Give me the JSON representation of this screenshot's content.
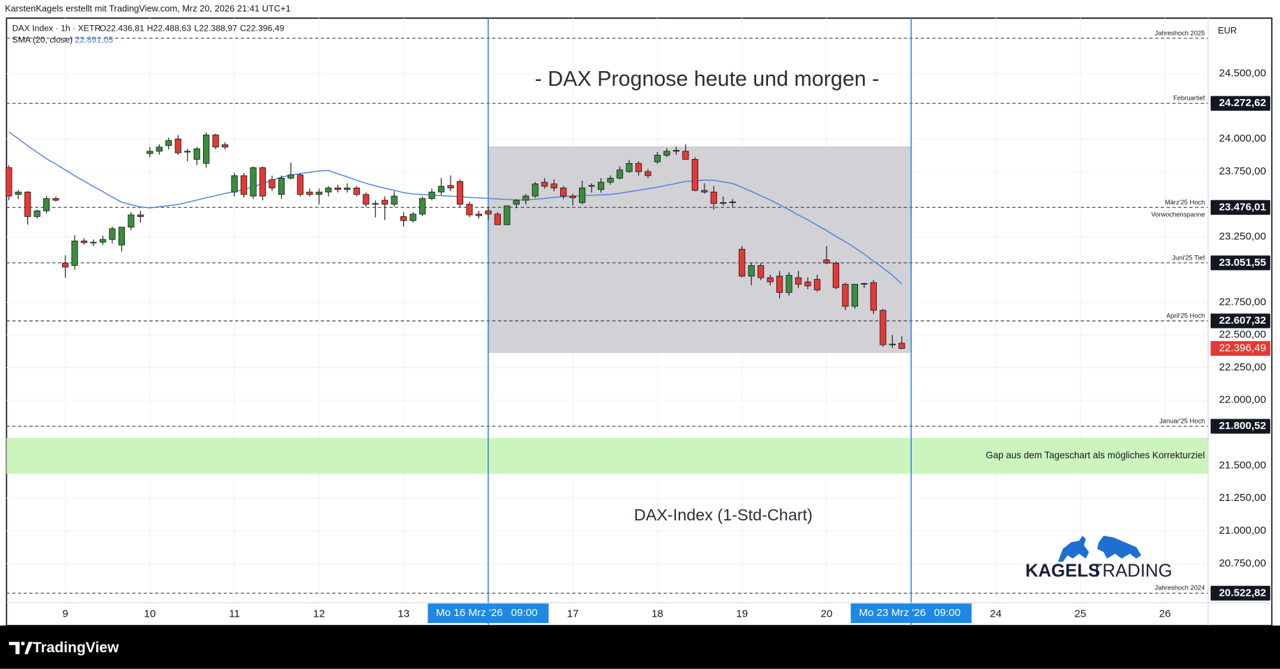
{
  "chart_data": {
    "type": "candlestick",
    "header": "KarstenKagels erstellt mit TradingView.com, Mrz 20, 2026 21:41 UTC+1",
    "title": "- DAX Prognose heute und morgen -",
    "subtitle": "DAX-Index (1-Std-Chart)",
    "symbol": "DAX Index · 1h · XETR",
    "legend_ohlc": [
      "O22.436,81",
      "H22.488,63",
      "L22.388,97",
      "C22.396,49"
    ],
    "currency": "EUR",
    "brand": [
      "KAGELS",
      "TRADING"
    ],
    "footer": "TradingView",
    "up_color": "#388e3c",
    "down_color": "#e53935",
    "grid": true,
    "xlim": [
      -0.25,
      127.6
    ],
    "ylim": [
      20450,
      24925
    ],
    "xticks": [
      {
        "value": 6,
        "label": "9"
      },
      {
        "value": 15,
        "label": "10"
      },
      {
        "value": 24,
        "label": "11"
      },
      {
        "value": 33,
        "label": "12"
      },
      {
        "value": 42,
        "label": "13"
      },
      {
        "value": 60,
        "label": "17"
      },
      {
        "value": 69,
        "label": "18"
      },
      {
        "value": 78,
        "label": "19"
      },
      {
        "value": 87,
        "label": "20"
      },
      {
        "value": 105,
        "label": "24"
      },
      {
        "value": 114,
        "label": "25"
      },
      {
        "value": 123,
        "label": "26"
      }
    ],
    "x_highlights": [
      {
        "value": 51,
        "label": "Mo 16 Mrz '26",
        "time": "09:00"
      },
      {
        "value": 96,
        "label": "Mo 23 Mrz '26",
        "time": "09:00"
      }
    ],
    "highlight_color": "#1e88e5",
    "yticks": [
      {
        "value": 24500,
        "label": "24.500,00"
      },
      {
        "value": 24000,
        "label": "24.000,00"
      },
      {
        "value": 23750,
        "label": "23.750,00"
      },
      {
        "value": 23250,
        "label": "23.250,00"
      },
      {
        "value": 22750,
        "label": "22.750,00"
      },
      {
        "value": 22500,
        "label": "22.500,00"
      },
      {
        "value": 22250,
        "label": "22.250,00"
      },
      {
        "value": 22000,
        "label": "22.000,00"
      },
      {
        "value": 21500,
        "label": "21.500,00"
      },
      {
        "value": 21250,
        "label": "21.250,00"
      },
      {
        "value": 21000,
        "label": "21.000,00"
      },
      {
        "value": 20750,
        "label": "20.750,00"
      }
    ],
    "x": [
      0,
      1,
      2,
      3,
      4,
      5,
      6,
      7,
      8,
      9,
      10,
      11,
      12,
      13,
      14,
      15,
      16,
      17,
      18,
      19,
      20,
      21,
      22,
      23,
      24,
      25,
      26,
      27,
      28,
      29,
      30,
      31,
      32,
      33,
      34,
      35,
      36,
      37,
      38,
      39,
      40,
      41,
      42,
      43,
      44,
      45,
      46,
      47,
      48,
      49,
      50,
      51,
      52,
      53,
      54,
      55,
      56,
      57,
      58,
      59,
      60,
      61,
      62,
      63,
      64,
      65,
      66,
      67,
      68,
      69,
      70,
      71,
      72,
      73,
      74,
      75,
      76,
      77,
      78,
      79,
      80,
      81,
      82,
      83,
      84,
      85,
      86,
      87,
      88,
      89,
      90,
      91,
      92,
      93,
      94,
      95
    ],
    "open": [
      23781,
      23575,
      23594,
      23406,
      23450,
      23544,
      23050,
      23031,
      23219,
      23206,
      23210,
      23231,
      23188,
      23325,
      23419,
      23888,
      23906,
      23950,
      24000,
      23906,
      23844,
      23813,
      24031,
      23956,
      23594,
      23719,
      23563,
      23781,
      23688,
      23575,
      23700,
      23725,
      23594,
      23575,
      23594,
      23625,
      23613,
      23625,
      23575,
      23500,
      23531,
      23500,
      23406,
      23375,
      23425,
      23544,
      23594,
      23644,
      23675,
      23500,
      23425,
      23450,
      23425,
      23344,
      23500,
      23531,
      23563,
      23669,
      23656,
      23625,
      23563,
      23513,
      23638,
      23613,
      23669,
      23700,
      23750,
      23813,
      23750,
      23825,
      23875,
      23906,
      23906,
      23844,
      23606,
      23594,
      23513,
      23519,
      23156,
      22950,
      23031,
      22938,
      22950,
      22825,
      22938,
      22906,
      22925,
      23075,
      23050,
      22888,
      22719,
      22894,
      22900,
      22688,
      22425,
      22436.81
    ],
    "high": [
      23800,
      23610,
      23600,
      23460,
      23565,
      23560,
      23110,
      23263,
      23240,
      23230,
      23260,
      23330,
      23325,
      23440,
      23450,
      23940,
      23960,
      24010,
      24030,
      23925,
      23940,
      24050,
      24040,
      23975,
      23740,
      23740,
      23790,
      23790,
      23720,
      23720,
      23820,
      23740,
      23620,
      23620,
      23640,
      23650,
      23660,
      23640,
      23590,
      23530,
      23560,
      23600,
      23440,
      23440,
      23560,
      23620,
      23700,
      23720,
      23690,
      23520,
      23450,
      23480,
      23440,
      23490,
      23540,
      23580,
      23670,
      23700,
      23690,
      23640,
      23580,
      23680,
      23660,
      23700,
      23720,
      23790,
      23840,
      23830,
      23770,
      23900,
      23930,
      23940,
      23960,
      23860,
      23660,
      23640,
      23560,
      23540,
      23180,
      23050,
      23050,
      22960,
      22990,
      22980,
      22990,
      22940,
      22960,
      23180,
      23060,
      22900,
      22890,
      22900,
      22920,
      22700,
      22500,
      22488.63
    ],
    "low": [
      23531,
      23540,
      23344,
      23390,
      23430,
      23520,
      22938,
      23000,
      23190,
      23180,
      23190,
      23200,
      23138,
      23300,
      23360,
      23860,
      23880,
      23920,
      23880,
      23830,
      23800,
      23780,
      23920,
      23920,
      23560,
      23550,
      23540,
      23530,
      23600,
      23540,
      23690,
      23560,
      23560,
      23500,
      23560,
      23590,
      23590,
      23560,
      23480,
      23400,
      23380,
      23480,
      23330,
      23360,
      23410,
      23530,
      23570,
      23600,
      23480,
      23400,
      23390,
      23380,
      23340,
      23340,
      23470,
      23500,
      23550,
      23620,
      23600,
      23540,
      23490,
      23500,
      23590,
      23590,
      23650,
      23690,
      23740,
      23720,
      23700,
      23810,
      23860,
      23880,
      23860,
      23600,
      23580,
      23460,
      23490,
      23480,
      22940,
      22880,
      22920,
      22880,
      22780,
      22800,
      22860,
      22850,
      22830,
      23040,
      22850,
      22690,
      22700,
      22860,
      22660,
      22410,
      22400,
      22388.97
    ],
    "close": [
      23563,
      23594,
      23406,
      23450,
      23544,
      23531,
      23019,
      23219,
      23206,
      23210,
      23231,
      23313,
      23325,
      23419,
      23406,
      23906,
      23938,
      23988,
      23894,
      23900,
      23925,
      24031,
      23938,
      23938,
      23719,
      23575,
      23781,
      23563,
      23625,
      23700,
      23725,
      23575,
      23575,
      23594,
      23625,
      23613,
      23625,
      23575,
      23500,
      23506,
      23500,
      23563,
      23375,
      23425,
      23544,
      23594,
      23638,
      23625,
      23500,
      23419,
      23413,
      23425,
      23344,
      23488,
      23531,
      23563,
      23656,
      23638,
      23625,
      23563,
      23550,
      23625,
      23644,
      23669,
      23700,
      23763,
      23813,
      23750,
      23719,
      23875,
      23906,
      23913,
      23844,
      23606,
      23594,
      23506,
      23513,
      23513,
      22950,
      23031,
      22938,
      22906,
      22825,
      22956,
      22888,
      22875,
      22844,
      23050,
      22863,
      22719,
      22888,
      22890,
      22688,
      22425,
      22430,
      22396.49
    ],
    "last_price_label": "22.396,49",
    "sma": {
      "name": "SMA (20, close)",
      "color": "#4a7ee0",
      "last_label": "22.891,05",
      "values": [
        24052,
        24002,
        23948,
        23898,
        23849,
        23808,
        23763,
        23718,
        23678,
        23636,
        23597,
        23555,
        23517,
        23497,
        23480,
        23472,
        23481,
        23490,
        23498,
        23515,
        23532,
        23550,
        23566,
        23583,
        23597,
        23612,
        23634,
        23660,
        23683,
        23708,
        23724,
        23735,
        23745,
        23755,
        23759,
        23733,
        23710,
        23684,
        23660,
        23641,
        23623,
        23607,
        23589,
        23579,
        23575,
        23571,
        23566,
        23562,
        23558,
        23553,
        23549,
        23545,
        23541,
        23537,
        23533,
        23533,
        23539,
        23545,
        23552,
        23558,
        23563,
        23566,
        23569,
        23572,
        23575,
        23584,
        23596,
        23607,
        23619,
        23631,
        23646,
        23660,
        23675,
        23680,
        23685,
        23684,
        23671,
        23659,
        23630,
        23599,
        23565,
        23533,
        23496,
        23459,
        23418,
        23381,
        23340,
        23299,
        23254,
        23213,
        23167,
        23119,
        23064,
        23013,
        22957,
        22891.05
      ]
    },
    "levels": [
      {
        "name": "Jahreshoch 2025",
        "value": 24771
      },
      {
        "name": "Februartief",
        "value": 24272.62,
        "label": "24.272,62"
      },
      {
        "name": "März'25 Hoch",
        "value": 23476.01,
        "label": "23.476,01"
      },
      {
        "name": "Juni'25 Tief",
        "value": 23051.55,
        "label": "23.051,55"
      },
      {
        "name": "April'25 Hoch",
        "value": 22607.32,
        "label": "22.607,32"
      },
      {
        "name": "Januar'25 Hoch",
        "value": 21800.52,
        "label": "21.800,52"
      },
      {
        "name": "Jahreshoch 2024",
        "value": 20522.82,
        "label": "20.522,82"
      }
    ],
    "zones": [
      {
        "name": "Vorwochenspanne",
        "low": 22362,
        "high": 23944,
        "x": [
          51,
          96
        ],
        "color": "#d1d1d6"
      },
      {
        "name": "Gap aus dem Tageschart als mögliches Korrekturziel",
        "low": 21437,
        "high": 21712,
        "color": "#ccf5bd"
      }
    ]
  }
}
